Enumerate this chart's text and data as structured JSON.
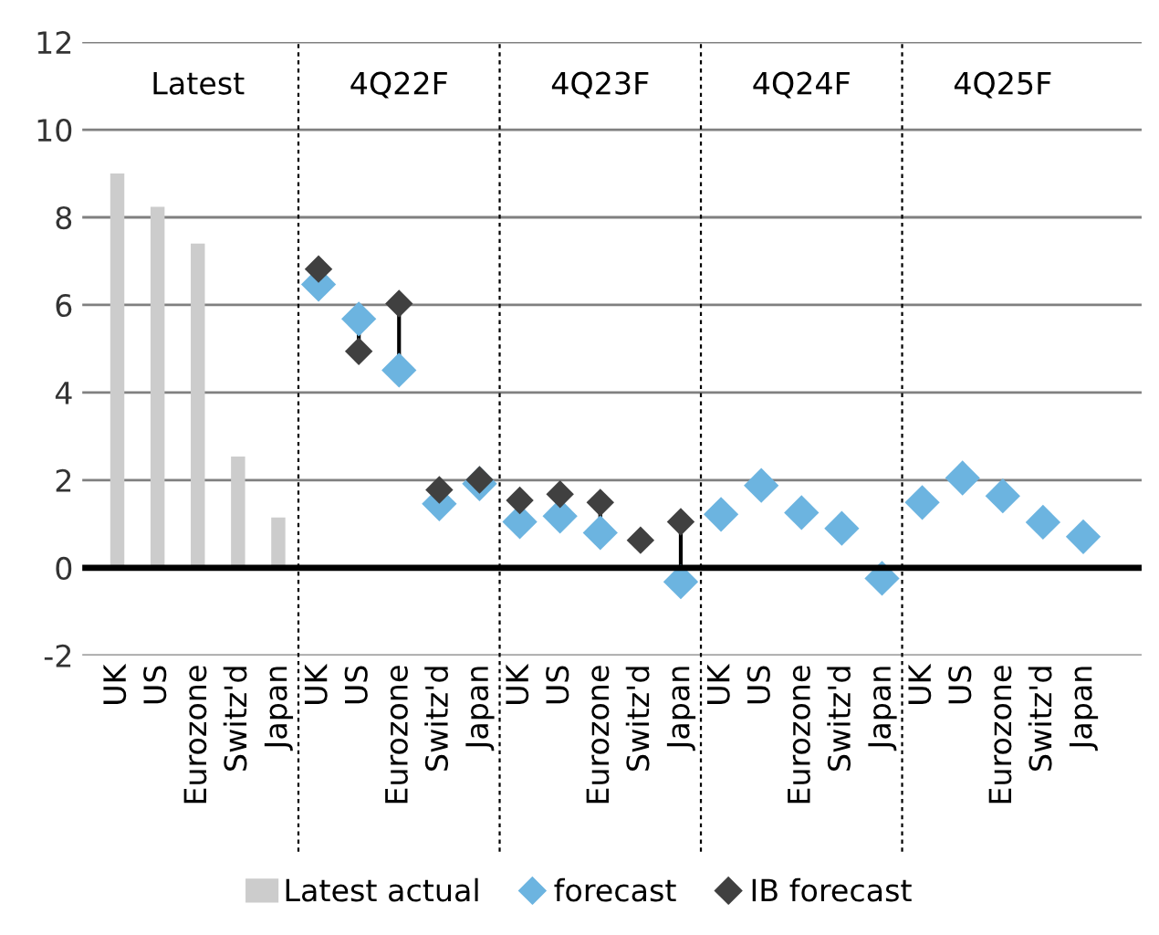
{
  "chart_data": {
    "type": "bar",
    "categories": [
      "UK",
      "US",
      "Eurozone",
      "Switz'd",
      "Japan",
      "UK",
      "US",
      "Eurozone",
      "Switz'd",
      "Japan",
      "UK",
      "US",
      "Eurozone",
      "Switz'd",
      "Japan",
      "UK",
      "US",
      "Eurozone",
      "Switz'd",
      "Japan",
      "UK",
      "US",
      "Eurozone",
      "Switz'd",
      "Japan"
    ],
    "series": [
      {
        "name": "Latest actual",
        "color": "#cccccc",
        "values": [
          9.0,
          8.24,
          7.4,
          2.54,
          1.15,
          null,
          null,
          null,
          null,
          null,
          null,
          null,
          null,
          null,
          null,
          null,
          null,
          null,
          null,
          null,
          null,
          null,
          null,
          null,
          null
        ]
      },
      {
        "name": "forecast",
        "type": "scatter",
        "marker": "diamond",
        "color": "#6cb4e0",
        "values": [
          null,
          null,
          null,
          null,
          null,
          6.47,
          5.68,
          4.51,
          1.46,
          1.92,
          1.05,
          1.18,
          0.8,
          null,
          -0.32,
          1.22,
          1.88,
          1.26,
          0.9,
          -0.24,
          1.49,
          2.05,
          1.64,
          1.04,
          0.71
        ]
      },
      {
        "name": "IB forecast",
        "type": "scatter",
        "marker": "diamond",
        "color": "#404040",
        "values": [
          null,
          null,
          null,
          null,
          null,
          6.82,
          4.94,
          6.03,
          1.78,
          2.01,
          1.54,
          1.68,
          1.49,
          0.63,
          1.05,
          null,
          null,
          null,
          null,
          null,
          null,
          null,
          null,
          null,
          null
        ]
      }
    ],
    "ylim": [
      -2,
      12
    ],
    "yticks": [
      -2,
      0,
      2,
      4,
      6,
      8,
      10,
      12
    ],
    "grid": "y",
    "legend": "bottom",
    "annotations": [
      "Latest",
      "4Q22F",
      "4Q23F",
      "4Q24F",
      "4Q25F"
    ]
  }
}
